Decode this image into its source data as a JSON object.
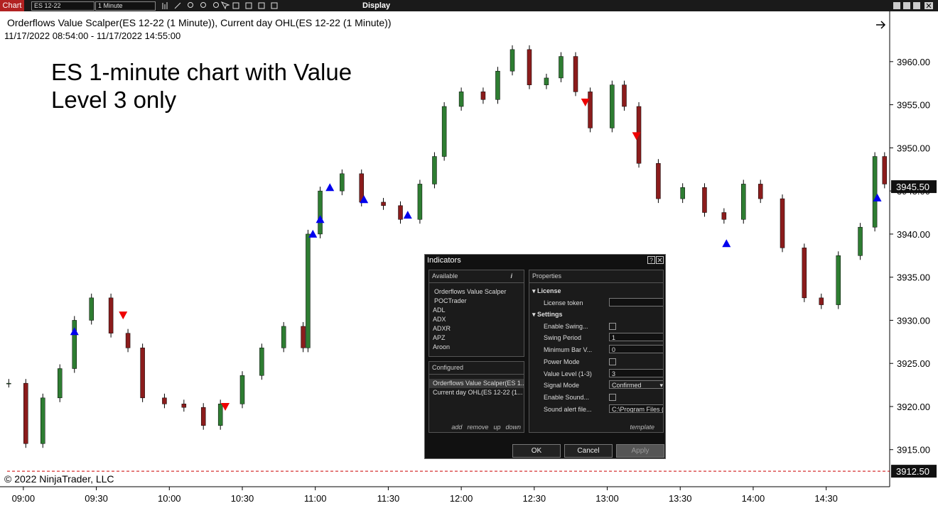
{
  "toolbar": {
    "tab": "Chart",
    "instrument": "ES 12-22",
    "interval": "1 Minute",
    "menu": "Display"
  },
  "chart_data": {
    "type": "candlestick",
    "title": "Orderflows Value Scalper(ES 12-22 (1 Minute)), Current day OHL(ES 12-22 (1 Minute))",
    "subtitle": "11/17/2022 08:54:00 - 11/17/2022 14:55:00",
    "annotation": "ES 1-minute chart with Value Level 3 only",
    "copyright": "© 2022 NinjaTrader, LLC",
    "x": [
      534,
      541,
      548,
      555,
      561,
      568,
      576,
      583,
      589,
      598,
      606,
      614,
      621,
      630,
      638,
      647,
      655,
      657,
      662,
      671,
      679,
      688,
      695,
      703,
      709,
      713,
      720,
      729,
      735,
      741,
      748,
      755,
      761,
      767,
      773,
      782,
      787,
      793,
      801,
      811,
      820,
      828,
      836,
      843,
      852,
      861,
      868,
      875,
      884,
      890,
      894
    ],
    "values": [
      3922.7,
      3915.7,
      3921,
      3924.4,
      3930,
      3932.6,
      3928.5,
      3926.8,
      3921,
      3920.3,
      3919.9,
      3917.8,
      3920.3,
      3923.6,
      3926.8,
      3929.3,
      3926.8,
      3940,
      3945,
      3947,
      3943.7,
      3943.3,
      3941.7,
      3945.8,
      3949,
      3954.8,
      3956.5,
      3955.6,
      3958.9,
      3961.4,
      3957.3,
      3958.1,
      3960.6,
      3956.5,
      3952.3,
      3957.3,
      3954.8,
      3948.2,
      3944.1,
      3945.4,
      3942.5,
      3941.7,
      3945.8,
      3944.1,
      3938.4,
      3932.6,
      3931.8,
      3937.5,
      3940.8,
      3949,
      3945.8
    ],
    "up_color": "#2e7d32",
    "down_color": "#8b1c1c",
    "signals": [
      {
        "x": 561,
        "y": 3928.7,
        "color": "#0000ee",
        "direction": "up"
      },
      {
        "x": 659,
        "y": 3940.0,
        "color": "#0000ee",
        "direction": "up"
      },
      {
        "x": 662,
        "y": 3941.7,
        "color": "#0000ee",
        "direction": "up"
      },
      {
        "x": 666,
        "y": 3945.4,
        "color": "#0000ee",
        "direction": "up"
      },
      {
        "x": 680,
        "y": 3944.0,
        "color": "#0000ee",
        "direction": "up"
      },
      {
        "x": 698,
        "y": 3942.2,
        "color": "#0000ee",
        "direction": "up"
      },
      {
        "x": 829,
        "y": 3938.9,
        "color": "#0000ee",
        "direction": "up"
      },
      {
        "x": 891,
        "y": 3944.2,
        "color": "#0000ee",
        "direction": "up"
      },
      {
        "x": 581,
        "y": 3930.6,
        "color": "#ee0000",
        "direction": "down"
      },
      {
        "x": 623,
        "y": 3920.0,
        "color": "#ee0000",
        "direction": "down"
      },
      {
        "x": 771,
        "y": 3955.3,
        "color": "#ee0000",
        "direction": "down"
      },
      {
        "x": 792,
        "y": 3951.4,
        "color": "#ee0000",
        "direction": "down"
      }
    ],
    "xlim": [
      530.4,
      896.1
    ],
    "xticks": [
      {
        "value": 540,
        "label": "09:00"
      },
      {
        "value": 570,
        "label": "09:30"
      },
      {
        "value": 600,
        "label": "10:00"
      },
      {
        "value": 630,
        "label": "10:30"
      },
      {
        "value": 660,
        "label": "11:00"
      },
      {
        "value": 690,
        "label": "11:30"
      },
      {
        "value": 720,
        "label": "12:00"
      },
      {
        "value": 750,
        "label": "12:30"
      },
      {
        "value": 780,
        "label": "13:00"
      },
      {
        "value": 810,
        "label": "13:30"
      },
      {
        "value": 840,
        "label": "14:00"
      },
      {
        "value": 870,
        "label": "14:30"
      }
    ],
    "ylim": [
      3910.7,
      3965.5
    ],
    "yticks": [
      {
        "value": 3915,
        "label": "3915.00"
      },
      {
        "value": 3920,
        "label": "3920.00"
      },
      {
        "value": 3925,
        "label": "3925.00"
      },
      {
        "value": 3930,
        "label": "3930.00"
      },
      {
        "value": 3935,
        "label": "3935.00"
      },
      {
        "value": 3940,
        "label": "3940.00"
      },
      {
        "value": 3945,
        "label": "3945.00"
      },
      {
        "value": 3950,
        "label": "3950.00"
      },
      {
        "value": 3955,
        "label": "3955.00"
      },
      {
        "value": 3960,
        "label": "3960.00"
      }
    ],
    "last_price": {
      "value": 3945.5,
      "label": "3945.50"
    },
    "reference_line": {
      "value": 3912.5,
      "label": "3912.50",
      "color": "#cc0000"
    }
  },
  "dialog": {
    "title": "Indicators",
    "available": {
      "header": "Available",
      "items": [
        "Orderflows Value Scalper",
        "POCTrader",
        "ADL",
        "ADX",
        "ADXR",
        "APZ",
        "Aroon"
      ]
    },
    "configured": {
      "header": "Configured",
      "items": [
        "Orderflows Value Scalper(ES 1...",
        "Current day OHL(ES 12-22 (1..."
      ],
      "actions": [
        "add",
        "remove",
        "up",
        "down"
      ]
    },
    "properties": {
      "header": "Properties",
      "groups": [
        {
          "name": "License",
          "rows": [
            {
              "label": "License token",
              "control": "text",
              "value": ""
            }
          ]
        },
        {
          "name": "Settings",
          "rows": [
            {
              "label": "Enable Swing...",
              "control": "checkbox"
            },
            {
              "label": "Swing Period",
              "control": "text",
              "value": "1"
            },
            {
              "label": "Minimum Bar V...",
              "control": "text",
              "value": "0"
            },
            {
              "label": "Power Mode",
              "control": "checkbox"
            },
            {
              "label": "Value Level (1-3)",
              "control": "text",
              "value": "3"
            },
            {
              "label": "Signal Mode",
              "control": "select",
              "value": "Confirmed"
            },
            {
              "label": "Enable Sound...",
              "control": "checkbox"
            },
            {
              "label": "Sound alert file...",
              "control": "text",
              "value": "C:\\Program Files (x"
            }
          ]
        }
      ],
      "template": "template"
    },
    "buttons": [
      "OK",
      "Cancel",
      "Apply"
    ]
  }
}
